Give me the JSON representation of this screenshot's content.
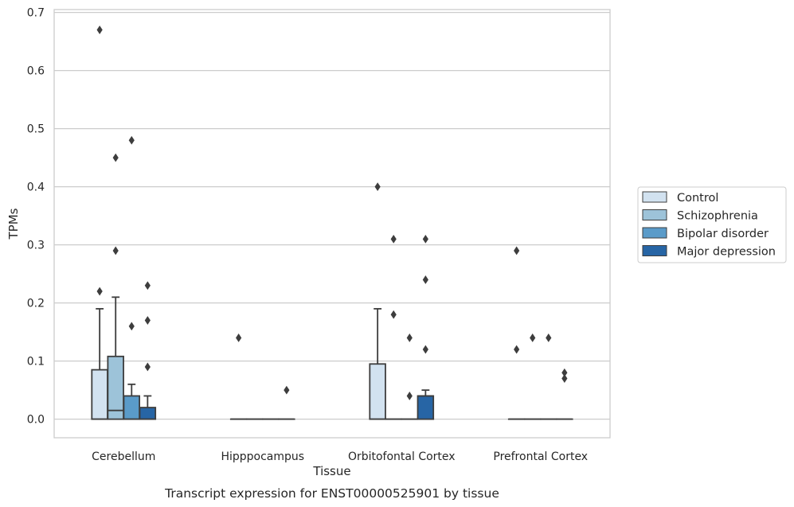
{
  "chart_data": {
    "type": "box",
    "title": "",
    "caption": "Transcript expression for ENST00000525901 by tissue",
    "xlabel": "Tissue",
    "ylabel": "TPMs",
    "ylim": [
      -0.032,
      0.705
    ],
    "yticks": [
      "0.0",
      "0.1",
      "0.2",
      "0.3",
      "0.4",
      "0.5",
      "0.6",
      "0.7"
    ],
    "ytick_values": [
      0,
      0.1,
      0.2,
      0.3,
      0.4,
      0.5,
      0.6,
      0.7
    ],
    "grid": "horizontal",
    "legend_position": "right",
    "categories": [
      "Cerebellum",
      "Hipppocampus",
      "Orbitofontal Cortex",
      "Prefrontal Cortex"
    ],
    "series": [
      {
        "name": "Control",
        "color": "#d2e2f0",
        "boxes": [
          {
            "q1": 0,
            "median": 0,
            "q3": 0.085,
            "whisker_low": 0,
            "whisker_high": 0.19,
            "outliers": [
              0.22,
              0.67
            ]
          },
          {
            "q1": 0,
            "median": 0,
            "q3": 0,
            "whisker_low": 0,
            "whisker_high": 0,
            "outliers": [
              0.14
            ]
          },
          {
            "q1": 0,
            "median": 0,
            "q3": 0.095,
            "whisker_low": 0,
            "whisker_high": 0.19,
            "outliers": [
              0.4
            ]
          },
          {
            "q1": 0,
            "median": 0,
            "q3": 0,
            "whisker_low": 0,
            "whisker_high": 0,
            "outliers": [
              0.12,
              0.29
            ]
          }
        ]
      },
      {
        "name": "Schizophrenia",
        "color": "#9dc3d9",
        "boxes": [
          {
            "q1": 0,
            "median": 0.015,
            "q3": 0.108,
            "whisker_low": 0,
            "whisker_high": 0.21,
            "outliers": [
              0.29,
              0.45
            ]
          },
          {
            "q1": 0,
            "median": 0,
            "q3": 0,
            "whisker_low": 0,
            "whisker_high": 0,
            "outliers": []
          },
          {
            "q1": 0,
            "median": 0,
            "q3": 0,
            "whisker_low": 0,
            "whisker_high": 0,
            "outliers": [
              0.18,
              0.31
            ]
          },
          {
            "q1": 0,
            "median": 0,
            "q3": 0,
            "whisker_low": 0,
            "whisker_high": 0,
            "outliers": [
              0.14
            ]
          }
        ]
      },
      {
        "name": "Bipolar disorder",
        "color": "#5a9bc9",
        "boxes": [
          {
            "q1": 0,
            "median": 0,
            "q3": 0.04,
            "whisker_low": 0,
            "whisker_high": 0.06,
            "outliers": [
              0.16,
              0.48
            ]
          },
          {
            "q1": 0,
            "median": 0,
            "q3": 0,
            "whisker_low": 0,
            "whisker_high": 0,
            "outliers": []
          },
          {
            "q1": 0,
            "median": 0,
            "q3": 0,
            "whisker_low": 0,
            "whisker_high": 0,
            "outliers": [
              0.04,
              0.14
            ]
          },
          {
            "q1": 0,
            "median": 0,
            "q3": 0,
            "whisker_low": 0,
            "whisker_high": 0,
            "outliers": [
              0.14
            ]
          }
        ]
      },
      {
        "name": "Major depression",
        "color": "#2765a5",
        "boxes": [
          {
            "q1": 0,
            "median": 0,
            "q3": 0.02,
            "whisker_low": 0,
            "whisker_high": 0.04,
            "outliers": [
              0.09,
              0.17,
              0.23
            ]
          },
          {
            "q1": 0,
            "median": 0,
            "q3": 0,
            "whisker_low": 0,
            "whisker_high": 0,
            "outliers": [
              0.05
            ]
          },
          {
            "q1": 0,
            "median": 0.04,
            "q3": 0.04,
            "whisker_low": 0,
            "whisker_high": 0.05,
            "outliers": [
              0.12,
              0.24,
              0.31
            ]
          },
          {
            "q1": 0,
            "median": 0,
            "q3": 0,
            "whisker_low": 0,
            "whisker_high": 0,
            "outliers": [
              0.07,
              0.08
            ]
          }
        ]
      }
    ],
    "colors": {
      "grid": "#cccccc",
      "frame": "#cccccc",
      "box_edge": "#3d3d3d",
      "outlier": "#3d3d3d"
    }
  }
}
